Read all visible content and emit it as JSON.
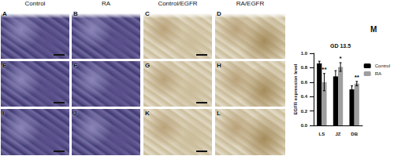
{
  "headers": [
    "Control",
    "RA",
    "Control/EGFR",
    "RA/EGFR"
  ],
  "panels": [
    [
      "A",
      "B",
      "C",
      "D"
    ],
    [
      "E",
      "F",
      "G",
      "H"
    ],
    [
      "I",
      "J",
      "K",
      "L"
    ]
  ],
  "chart_label": "M",
  "chart_data": {
    "type": "bar",
    "title": "GD 13.5",
    "categories": [
      "LS",
      "JZ",
      "DB"
    ],
    "y_label": "EGFR expression level",
    "series": [
      {
        "name": "Control",
        "color": "#000000",
        "values": [
          0.86,
          0.68,
          0.5
        ],
        "errors": [
          0.03,
          0.08,
          0.05
        ]
      },
      {
        "name": "RA",
        "color": "#9e9e9e",
        "values": [
          0.6,
          0.81,
          0.58
        ],
        "errors": [
          0.12,
          0.06,
          0.03
        ],
        "significance": [
          "**",
          "*",
          "**"
        ]
      }
    ],
    "ylim": [
      0,
      1
    ],
    "yticks": [
      {
        "value": 0,
        "label": "0.0"
      },
      0.2,
      0.4,
      0.6,
      0.8,
      {
        "value": 1,
        "label": "1.0"
      }
    ],
    "legend": "right",
    "grid": false
  }
}
